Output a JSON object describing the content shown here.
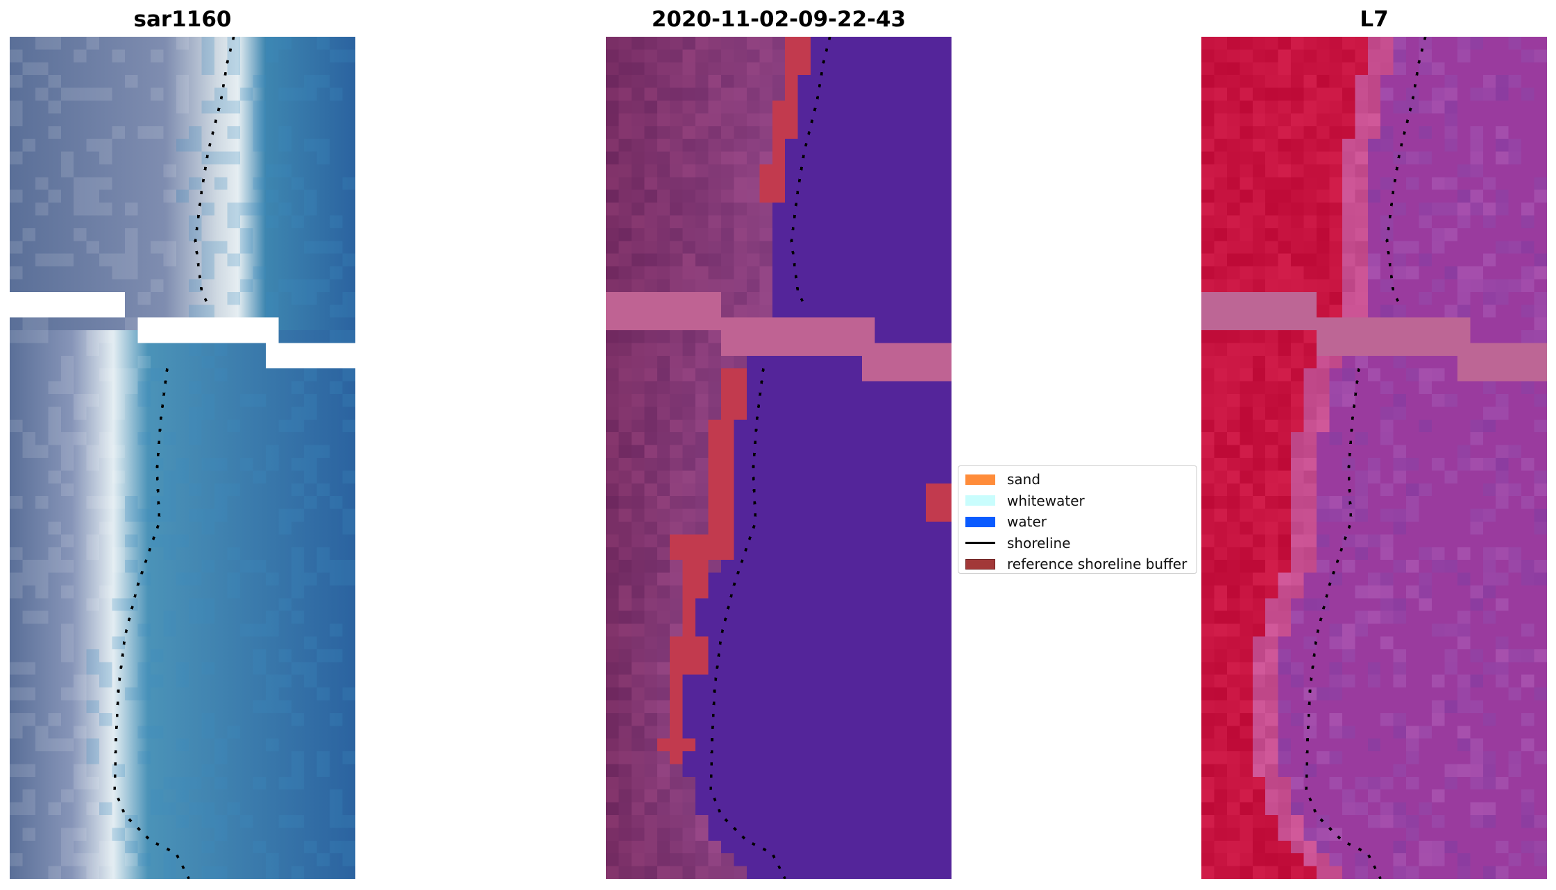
{
  "figure": {
    "panels": [
      {
        "id": "rgb",
        "title": "sar1160"
      },
      {
        "id": "classification",
        "title": "2020-11-02-09-22-43"
      },
      {
        "id": "mndwi",
        "title": "L7"
      }
    ]
  },
  "legend": {
    "items": [
      {
        "label": "sand",
        "color": "#ff8c3a",
        "kind": "patch"
      },
      {
        "label": "whitewater",
        "color": "#c9fdfd",
        "kind": "patch"
      },
      {
        "label": "water",
        "color": "#0a5bff",
        "kind": "patch"
      },
      {
        "label": "shoreline",
        "color": "#000000",
        "kind": "line"
      },
      {
        "label": "reference shoreline buffer",
        "color": "#a23838",
        "kind": "patch"
      }
    ]
  },
  "colors": {
    "rgb_land": "#586e98",
    "rgb_sand": "#d2dce6",
    "rgb_water": "#2d6ca3",
    "class_land": "#7a2f68",
    "class_water": "#54259a",
    "class_buffer": "#c23a4e",
    "class_nodata": "#bf6393",
    "mndwi_land": "#c4123f",
    "mndwi_water": "#9a3b9e",
    "mndwi_nodata": "#bd6695"
  }
}
